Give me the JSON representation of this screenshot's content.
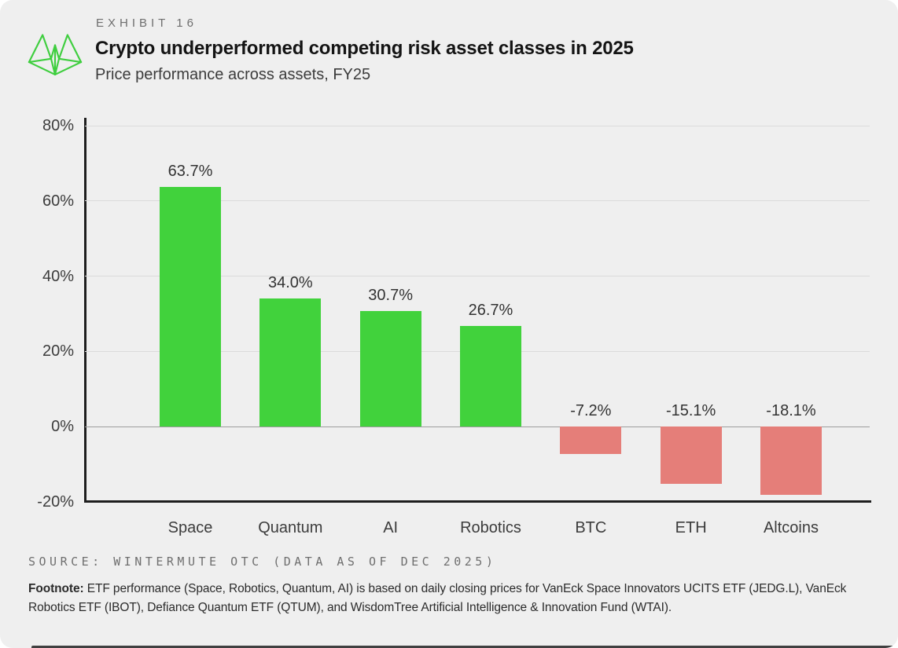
{
  "header": {
    "exhibit_label": "EXHIBIT 16",
    "title": "Crypto underperformed competing risk asset classes in 2025",
    "subtitle": "Price performance across assets, FY25"
  },
  "chart_data": {
    "type": "bar",
    "categories": [
      "Space",
      "Quantum",
      "AI",
      "Robotics",
      "BTC",
      "ETH",
      "Altcoins"
    ],
    "values": [
      63.7,
      34.0,
      30.7,
      26.7,
      -7.2,
      -15.1,
      -18.1
    ],
    "value_labels": [
      "63.7%",
      "34.0%",
      "30.7%",
      "26.7%",
      "-7.2%",
      "-15.1%",
      "-18.1%"
    ],
    "title": "Crypto underperformed competing risk asset classes in 2025",
    "subtitle": "Price performance across assets, FY25",
    "xlabel": "",
    "ylabel": "",
    "ylim": [
      -20,
      80
    ],
    "yticks": [
      80,
      60,
      40,
      20,
      0,
      -20
    ],
    "ytick_labels": [
      "80%",
      "60%",
      "40%",
      "20%",
      "0%",
      "-20%"
    ],
    "grid": true,
    "legend": "none",
    "positive_color": "#41D23C",
    "negative_color": "#E57E79"
  },
  "footer": {
    "source": "SOURCE: WINTERMUTE OTC (DATA AS OF DEC 2025)",
    "footnote_label": "Footnote:",
    "footnote_text": " ETF performance (Space, Robotics, Quantum, AI) is based on daily closing prices for VanEck Space Innovators UCITS ETF (JEDG.L), VanEck Robotics ETF (IBOT), Defiance Quantum ETF (QTUM), and WisdomTree Artificial Intelligence & Innovation Fund (WTAI)."
  },
  "colors": {
    "card_background": "#EFEFEF",
    "logo_green": "#3FCE3F",
    "gridline": "#DBDBDB",
    "zero_line": "#9C9C9C",
    "axis": "#1E1E1E"
  }
}
